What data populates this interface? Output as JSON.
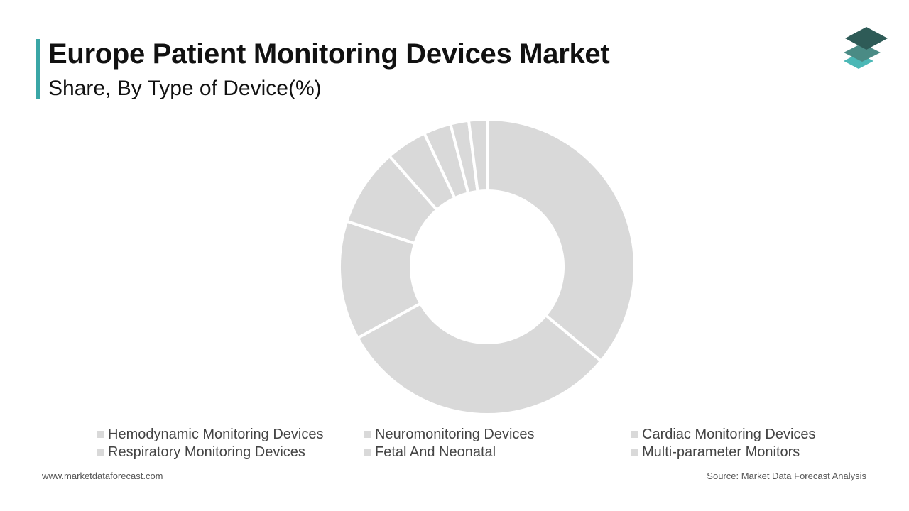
{
  "header": {
    "title": "Europe Patient Monitoring Devices Market",
    "subtitle": "Share, By Type of Device(%)",
    "accent_color": "#3aa6a6"
  },
  "logo": {
    "icon": "stacked-layers-logo-icon",
    "colors": [
      "#2e5b57",
      "#4a8b85",
      "#4bb8b6"
    ]
  },
  "chart_data": {
    "type": "pie",
    "subtype": "donut",
    "categories": [
      "Hemodynamic Monitoring Devices",
      "Neuromonitoring Devices",
      "Cardiac Monitoring Devices",
      "Respiratory Monitoring Devices",
      "Fetal And Neonatal",
      "Multi-parameter Monitors",
      "",
      ""
    ],
    "values": [
      36,
      31,
      13,
      8.5,
      4.5,
      3,
      2,
      2
    ],
    "unit": "%",
    "slice_color": "#d9d9d9",
    "separator_color": "#ffffff",
    "legend_position": "bottom"
  },
  "legend": {
    "items": [
      "Hemodynamic Monitoring Devices",
      "Neuromonitoring Devices",
      "Cardiac Monitoring Devices",
      "Respiratory Monitoring Devices",
      "Fetal And Neonatal",
      "Multi-parameter Monitors"
    ],
    "swatch_color": "#d9d9d9"
  },
  "footer": {
    "website": "www.marketdataforecast.com",
    "source": "Source: Market Data Forecast Analysis"
  }
}
